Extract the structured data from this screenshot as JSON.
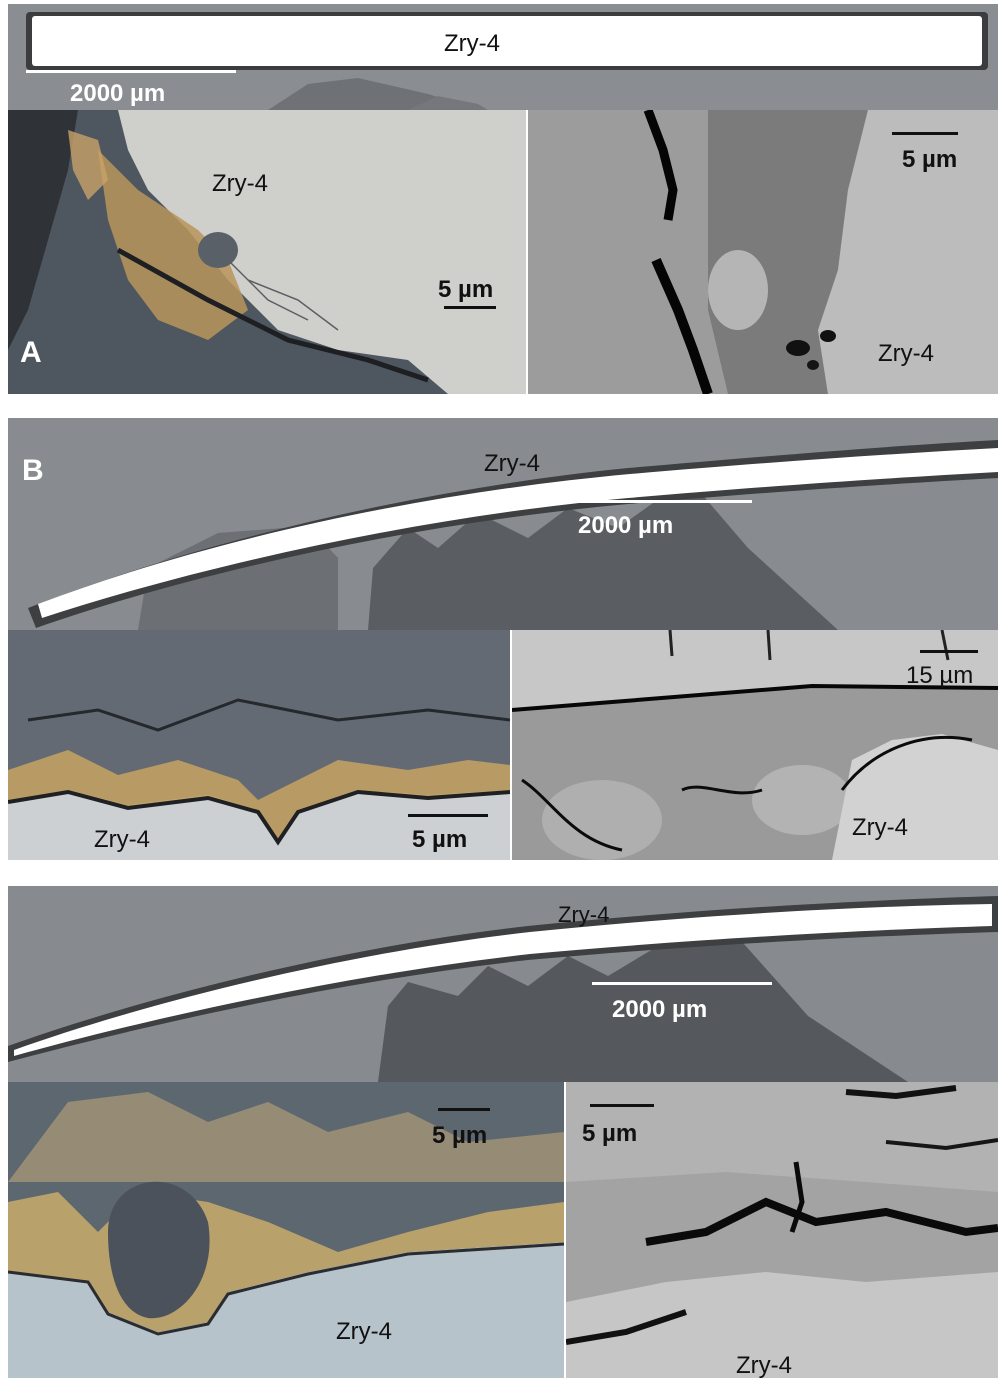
{
  "panels": {
    "a": {
      "letter": "A",
      "overview": {
        "material": "Zry-4",
        "scale": "2000 µm"
      },
      "optical": {
        "material": "Zry-4",
        "scale": "5 µm"
      },
      "sem": {
        "material": "Zry-4",
        "scale": "5 µm"
      }
    },
    "b": {
      "letter": "B",
      "overview": {
        "material": "Zry-4",
        "scale": "2000 µm"
      },
      "optical": {
        "material": "Zry-4",
        "scale": "5 µm"
      },
      "sem": {
        "material": "Zry-4",
        "scale": "15 µm"
      }
    },
    "c": {
      "overview": {
        "material": "Zry-4",
        "scale": "2000 µm"
      },
      "optical": {
        "material": "Zry-4",
        "scale": "5 µm"
      },
      "sem": {
        "material": "Zry-4",
        "scale": "5 µm"
      }
    }
  },
  "colors": {
    "cladding": "#ffffff",
    "mount": "#8a8f94",
    "oxide_optical": "#6d747b",
    "metal_optical": "#c9cdd0",
    "precipitate": "#c9a86a",
    "sem_background": "#9a9a9a"
  }
}
